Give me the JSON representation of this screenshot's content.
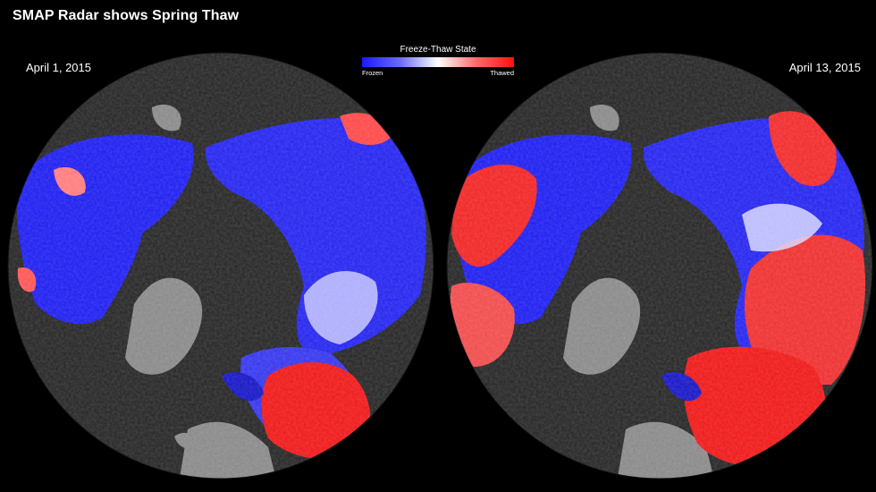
{
  "title": "SMAP Radar shows Spring Thaw",
  "legend": {
    "title": "Freeze-Thaw State",
    "low_label": "Frozen",
    "high_label": "Thawed",
    "colors": {
      "frozen": "#1a1aff",
      "neutral": "#ffffff",
      "thawed": "#ff1010"
    }
  },
  "maps": [
    {
      "date": "April 1, 2015"
    },
    {
      "date": "April 13, 2015"
    }
  ],
  "colors": {
    "background": "#000000",
    "ocean": "#2b2b2b",
    "land_no_data": "#8c8c8c"
  }
}
